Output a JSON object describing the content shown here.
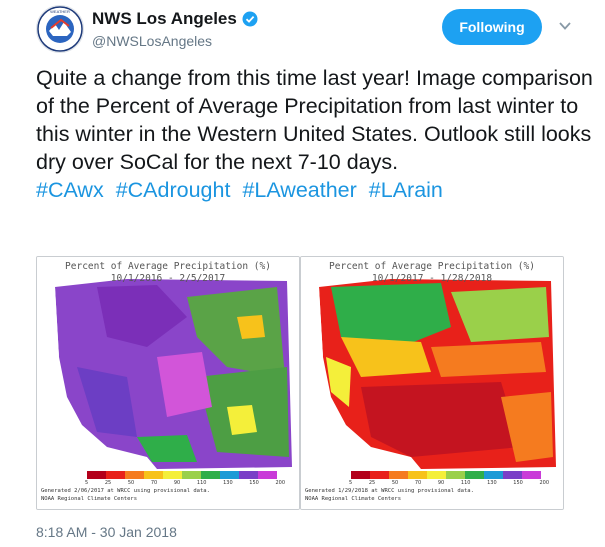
{
  "header": {
    "display_name": "NWS Los Angeles",
    "handle": "@NWSLosAngeles",
    "follow_label": "Following"
  },
  "tweet": {
    "text": "Quite a change from this time last year! Image comparison of the Percent of Average Precipitation from last winter to this winter in the Western United States. Outlook still looks dry over SoCal for the next 7-10 days.",
    "hashtags": [
      "#CAwx",
      "#CAdrought",
      "#LAweather",
      "#LArain"
    ],
    "timestamp": "8:18 AM - 30 Jan 2018"
  },
  "maps": [
    {
      "title": "Percent of Average Precipitation (%)",
      "period": "10/1/2016 - 2/5/2017",
      "generated": "Generated 2/06/2017 at WRCC using provisional data.",
      "center": "NOAA Regional Climate Centers"
    },
    {
      "title": "Percent of Average Precipitation (%)",
      "period": "10/1/2017 - 1/28/2018",
      "generated": "Generated 1/29/2018 at WRCC using provisional data.",
      "center": "NOAA Regional Climate Centers"
    }
  ],
  "legend": {
    "ticks": [
      "5",
      "25",
      "50",
      "70",
      "90",
      "110",
      "130",
      "150",
      "200"
    ],
    "colors": [
      "#b3001b",
      "#e8211a",
      "#f57b1f",
      "#f7c21b",
      "#f4ef3a",
      "#9ad04a",
      "#2fae49",
      "#1d9ad6",
      "#7a3fc7",
      "#c93bd8"
    ]
  },
  "colors": {
    "accent": "#1da1f2",
    "hashtag": "#1b95e0",
    "muted": "#657786"
  }
}
